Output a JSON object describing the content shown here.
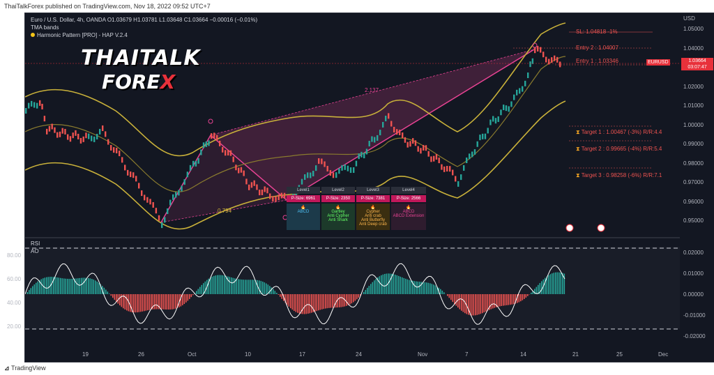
{
  "header": {
    "publisher_line": "ThaiTalkForex published on TradingView.com, Nov 18, 2022 09:52 UTC+7"
  },
  "footer": {
    "brand": "TradingView",
    "logo_icon": "tradingview-logo-icon"
  },
  "legend": {
    "symbol_line": "Euro / U.S. Dollar, 4h, OANDA  O1.03679  H1.03781  L1.03648  C1.03664  −0.00016 (−0.01%)",
    "indicator_1": "TMA bands",
    "indicator_2": "Harmonic Pattern [PRO] - HAP V.2.4"
  },
  "logo": {
    "line1": "THAITALK",
    "line2_a": "FORE",
    "line2_b": "X"
  },
  "price_axis": {
    "currency": "USD",
    "ticks": [
      "1.05000",
      "1.04000",
      "1.03000",
      "1.02000",
      "1.01000",
      "1.00000",
      "0.99000",
      "0.98000",
      "0.97000",
      "0.96000",
      "0.95000"
    ],
    "symbol_tag": "EURUSD",
    "current_price": "1.03664",
    "countdown": "03:07:47"
  },
  "rsi_panel": {
    "label": "RSI",
    "ao_label": "AO",
    "rsi_ticks": [
      "80.00",
      "60.00",
      "40.00",
      "20.00"
    ],
    "ao_ticks": [
      "0.02000",
      "0.01000",
      "0.00000",
      "-0.01000",
      "-0.02000"
    ]
  },
  "x_axis": {
    "ticks": [
      "19",
      "26",
      "Oct",
      "10",
      "17",
      "24",
      "Nov",
      "7",
      "14",
      "21",
      "25",
      "Dec"
    ]
  },
  "trade_levels": {
    "sl": "SL: 1.04818 -1%",
    "entry2": "Entry 2 : 1.04007",
    "entry1": "Entry 1 : 1.03346",
    "target1": "Target 1 : 1.00467 (-3%) R/R:4.4",
    "target2": "Target 2 : 0.99665 (-4%) R/R:5.4",
    "target3": "Target 3 : 0.98258 (-6%) R/R:7.1"
  },
  "pattern_labels": {
    "ratio_top": "2.137",
    "ratio_bottom": "0.794"
  },
  "hap_table": {
    "levels": [
      "Level1",
      "Level2",
      "Level3",
      "Level4"
    ],
    "sizes": [
      "P-Size: 6961",
      "P-Size: 2350",
      "P-Size: 7381",
      "P-Size: 2566"
    ],
    "patterns": [
      [
        "ABCD"
      ],
      [
        "Gartley",
        "Anti Cypher",
        "Anti Shark"
      ],
      [
        "Cypher",
        "Anti crab",
        "Anti Butterfly",
        "Anti Deep crab"
      ],
      [
        "ABCD",
        "ABCD Extension"
      ]
    ]
  },
  "colors": {
    "background": "#131722",
    "bull": "#26a69a",
    "bear": "#ef5350",
    "band": "#c9b13a",
    "pattern_line": "#e84393",
    "accent_red": "#e8313b"
  }
}
